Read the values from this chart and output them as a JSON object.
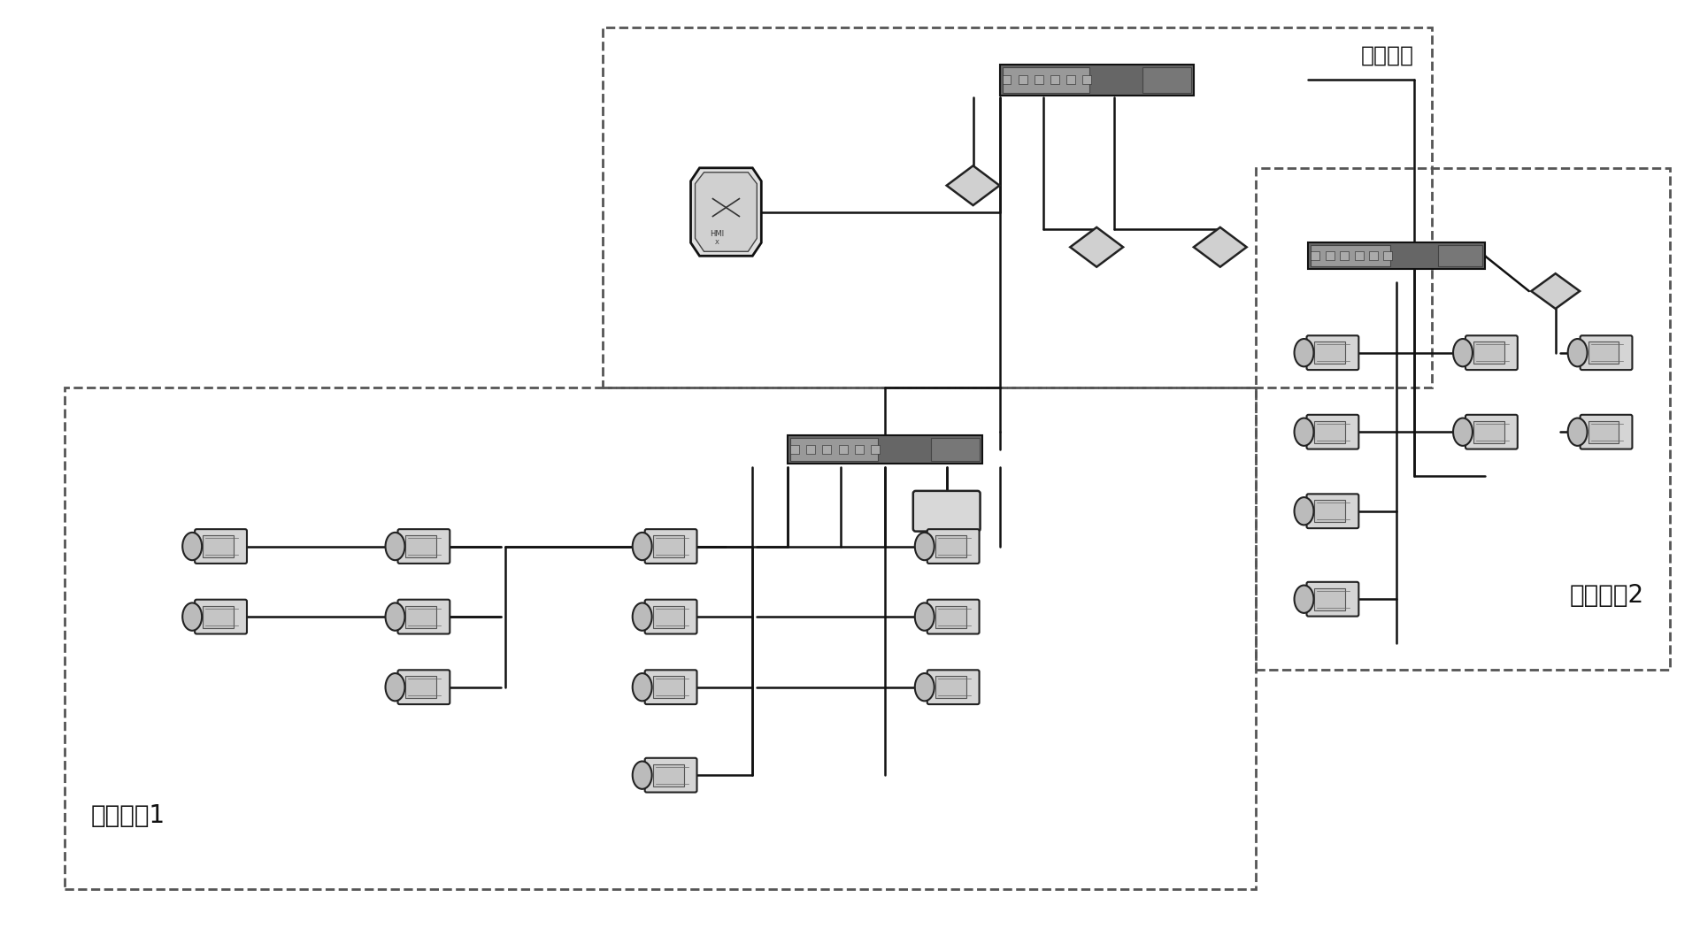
{
  "background_color": "#ffffff",
  "fig_width": 19.21,
  "fig_height": 10.58,
  "dpi": 100,
  "monitor_center_label": "监控中心",
  "lan1_label": "局域网络1",
  "lan2_label": "局域网络2",
  "text_fontsize": 18,
  "label_fontsize": 20,
  "line_color": "#111111",
  "line_width": 1.8,
  "box_color": "#444444",
  "device_face": "#d8d8d8",
  "device_edge": "#222222",
  "switch_face": "#888888",
  "switch_edge": "#111111"
}
